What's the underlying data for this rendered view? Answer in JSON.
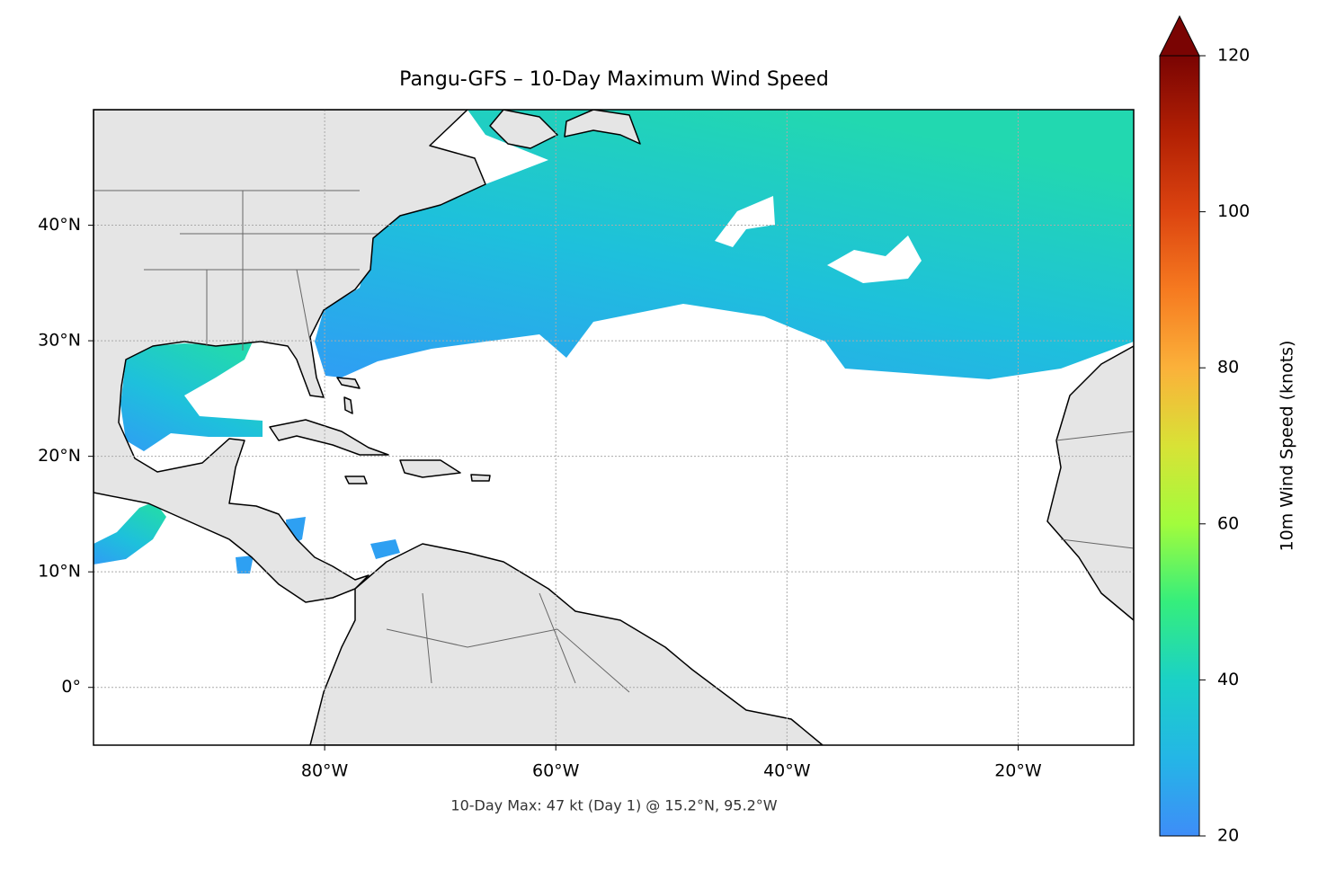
{
  "title": "Pangu-GFS – 10-Day Maximum Wind Speed",
  "footnote": "10-Day Max: 47 kt (Day 1) @ 15.2°N, 95.2°W",
  "map": {
    "xlim": [
      -100,
      -10
    ],
    "ylim": [
      -5,
      50
    ],
    "xticks": [
      {
        "value": -80,
        "label": "80°W"
      },
      {
        "value": -60,
        "label": "60°W"
      },
      {
        "value": -40,
        "label": "40°W"
      },
      {
        "value": -20,
        "label": "20°W"
      }
    ],
    "yticks": [
      {
        "value": 0,
        "label": "0°"
      },
      {
        "value": 10,
        "label": "10°N"
      },
      {
        "value": 20,
        "label": "20°N"
      },
      {
        "value": 30,
        "label": "30°N"
      },
      {
        "value": 40,
        "label": "40°N"
      }
    ],
    "grid": true
  },
  "colorbar": {
    "label": "10m Wind Speed (knots)",
    "lim": [
      20,
      120
    ],
    "ticks": [
      20,
      40,
      60,
      80,
      100,
      120
    ],
    "extend": "max"
  }
}
